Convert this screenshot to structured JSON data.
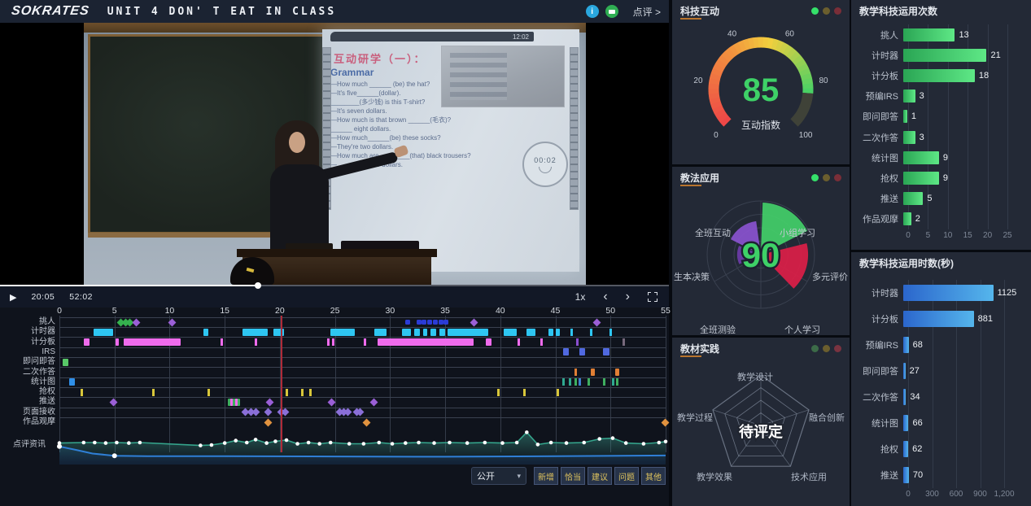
{
  "top_bar": {
    "logo": "SOKRATES",
    "title": "UNIT 4 DON' T EAT IN CLASS",
    "review_link": "点评 >",
    "info_icon_color": "#2aa7df",
    "chat_icon_color": "#2fae53"
  },
  "video": {
    "slide": {
      "clock": "12:02",
      "title": "互动研学（一）：",
      "heading": "Grammar",
      "lines": [
        "—How much ______ (be) the hat?",
        "—It's five______(dollar).",
        "________(多少钱) is this T-shirt?",
        "—It's seven dollars.",
        "—How much is that brown ______(毛衣)?",
        "______ eight dollars.",
        "—How much______(be) these socks?",
        "—They're two dollars.",
        "—How much are ________(that) black trousers?",
        "—________ nine dollars."
      ],
      "timer": "00:02"
    },
    "controls": {
      "play_icon": "▶",
      "current_time": "20:05",
      "duration": "52:02",
      "speed": "1x",
      "prev": "‹",
      "next": "›",
      "progress_percent": 38.6
    }
  },
  "timeline": {
    "x_ticks": [
      0,
      5,
      10,
      15,
      20,
      25,
      30,
      35,
      40,
      45,
      50,
      55
    ],
    "playhead_minute": 20.1,
    "playhead_color": "#b02a38",
    "rows": [
      {
        "label": "挑人",
        "items": [
          {
            "s": "dia",
            "a": 5.6,
            "c": "#35b24e"
          },
          {
            "s": "dia",
            "a": 6.0,
            "c": "#35b24e"
          },
          {
            "s": "dia",
            "a": 6.4,
            "c": "#35b24e"
          },
          {
            "s": "dia",
            "a": 7.0,
            "c": "#9a5fd6"
          },
          {
            "s": "dia",
            "a": 10.2,
            "c": "#9a5fd6"
          },
          {
            "s": "dot",
            "a": 31.6,
            "c": "#2b3bd6"
          },
          {
            "s": "dot",
            "a": 32.6,
            "c": "#2b3bd6"
          },
          {
            "s": "dot",
            "a": 33.1,
            "c": "#2b3bd6"
          },
          {
            "s": "dot",
            "a": 33.6,
            "c": "#2b3bd6"
          },
          {
            "s": "dot",
            "a": 34.1,
            "c": "#2b3bd6"
          },
          {
            "s": "dot",
            "a": 34.6,
            "c": "#2b3bd6"
          },
          {
            "s": "dot",
            "a": 35.1,
            "c": "#2b3bd6"
          },
          {
            "s": "dia",
            "a": 37.6,
            "c": "#9a5fd6"
          },
          {
            "s": "dia",
            "a": 48.8,
            "c": "#9a5fd6"
          }
        ]
      },
      {
        "label": "计时器",
        "items": [
          {
            "s": "bar",
            "a": 3.1,
            "b": 4.9,
            "c": "#2ec6f2"
          },
          {
            "s": "bar",
            "a": 13.1,
            "b": 13.5,
            "c": "#2ec6f2"
          },
          {
            "s": "bar",
            "a": 16.6,
            "b": 18.9,
            "c": "#2ec6f2"
          },
          {
            "s": "bar",
            "a": 19.4,
            "b": 20.4,
            "c": "#2ec6f2"
          },
          {
            "s": "bar",
            "a": 24.6,
            "b": 26.8,
            "c": "#2ec6f2"
          },
          {
            "s": "bar",
            "a": 28.6,
            "b": 29.7,
            "c": "#2ec6f2"
          },
          {
            "s": "bar",
            "a": 31.1,
            "b": 31.9,
            "c": "#2ec6f2"
          },
          {
            "s": "bar",
            "a": 32.2,
            "b": 32.7,
            "c": "#2ec6f2"
          },
          {
            "s": "bar",
            "a": 33.0,
            "b": 33.4,
            "c": "#2ec6f2"
          },
          {
            "s": "bar",
            "a": 33.7,
            "b": 34.2,
            "c": "#2ec6f2"
          },
          {
            "s": "bar",
            "a": 34.5,
            "b": 35.0,
            "c": "#2ec6f2"
          },
          {
            "s": "bar",
            "a": 35.2,
            "b": 38.9,
            "c": "#2ec6f2"
          },
          {
            "s": "bar",
            "a": 40.3,
            "b": 41.5,
            "c": "#2ec6f2"
          },
          {
            "s": "bar",
            "a": 42.4,
            "b": 43.2,
            "c": "#2ec6f2"
          },
          {
            "s": "bar",
            "a": 44.4,
            "b": 44.8,
            "c": "#2ec6f2"
          },
          {
            "s": "bar",
            "a": 45.0,
            "b": 45.4,
            "c": "#2ec6f2"
          },
          {
            "s": "tick",
            "a": 46.4,
            "c": "#2ec6f2"
          },
          {
            "s": "tick",
            "a": 48.1,
            "c": "#2ec6f2"
          },
          {
            "s": "tick",
            "a": 49.9,
            "c": "#2ec6f2"
          }
        ]
      },
      {
        "label": "计分板",
        "items": [
          {
            "s": "bar",
            "a": 2.2,
            "b": 2.7,
            "c": "#ef6bec"
          },
          {
            "s": "bar",
            "a": 5.1,
            "b": 5.4,
            "c": "#ef6bec"
          },
          {
            "s": "bar",
            "a": 5.8,
            "b": 11.0,
            "c": "#ef6bec"
          },
          {
            "s": "tick",
            "a": 14.6,
            "c": "#ef6bec"
          },
          {
            "s": "tick",
            "a": 17.7,
            "c": "#ef6bec"
          },
          {
            "s": "tick",
            "a": 24.3,
            "c": "#ef6bec"
          },
          {
            "s": "tick",
            "a": 24.7,
            "c": "#ef6bec"
          },
          {
            "s": "tick",
            "a": 27.6,
            "c": "#ef6bec"
          },
          {
            "s": "bar",
            "a": 28.9,
            "b": 37.6,
            "c": "#ef6bec"
          },
          {
            "s": "bar",
            "a": 38.7,
            "b": 39.2,
            "c": "#ef6bec"
          },
          {
            "s": "tick",
            "a": 41.6,
            "c": "#ef6bec"
          },
          {
            "s": "tick",
            "a": 43.6,
            "c": "#ef6bec"
          },
          {
            "s": "tick",
            "a": 46.9,
            "c": "#8a4fd0"
          },
          {
            "s": "tick",
            "a": 51.1,
            "c": "#77697c"
          }
        ]
      },
      {
        "label": "IRS",
        "items": [
          {
            "s": "bar",
            "a": 45.7,
            "b": 46.2,
            "c": "#5069e0"
          },
          {
            "s": "bar",
            "a": 47.2,
            "b": 47.7,
            "c": "#5069e0"
          },
          {
            "s": "bar",
            "a": 49.3,
            "b": 49.9,
            "c": "#5069e0"
          }
        ]
      },
      {
        "label": "即问即答",
        "items": [
          {
            "s": "bar",
            "a": 0.3,
            "b": 0.8,
            "c": "#58c868"
          }
        ]
      },
      {
        "label": "二次作答",
        "items": [
          {
            "s": "tick",
            "a": 46.7,
            "c": "#e07f35"
          },
          {
            "s": "bar",
            "a": 48.2,
            "b": 48.6,
            "c": "#e07f35"
          },
          {
            "s": "bar",
            "a": 50.4,
            "b": 50.8,
            "c": "#e07f35"
          }
        ]
      },
      {
        "label": "统计图",
        "items": [
          {
            "s": "bar",
            "a": 0.9,
            "b": 1.4,
            "c": "#2f8fe8"
          },
          {
            "s": "tick",
            "a": 45.6,
            "c": "#2fa890"
          },
          {
            "s": "tick",
            "a": 46.2,
            "c": "#2fa890"
          },
          {
            "s": "tick",
            "a": 46.7,
            "c": "#3fae5f"
          },
          {
            "s": "tick",
            "a": 47.1,
            "c": "#3f7fd0"
          },
          {
            "s": "tick",
            "a": 47.9,
            "c": "#3fae5f"
          },
          {
            "s": "tick",
            "a": 49.3,
            "c": "#3fae5f"
          },
          {
            "s": "tick",
            "a": 50.1,
            "c": "#2fa890"
          },
          {
            "s": "tick",
            "a": 50.5,
            "c": "#3fae5f"
          }
        ]
      },
      {
        "label": "抢权",
        "items": [
          {
            "s": "tick",
            "a": 1.9,
            "c": "#d8c63a"
          },
          {
            "s": "tick",
            "a": 8.4,
            "c": "#d8c63a"
          },
          {
            "s": "tick",
            "a": 13.4,
            "c": "#d8c63a"
          },
          {
            "s": "tick",
            "a": 20.5,
            "c": "#d8c63a"
          },
          {
            "s": "tick",
            "a": 21.9,
            "c": "#d8c63a"
          },
          {
            "s": "tick",
            "a": 22.7,
            "c": "#d8c63a"
          },
          {
            "s": "tick",
            "a": 39.7,
            "c": "#d8c63a"
          },
          {
            "s": "tick",
            "a": 42.1,
            "c": "#d8c63a"
          },
          {
            "s": "tick",
            "a": 45.1,
            "c": "#d8c63a"
          }
        ]
      },
      {
        "label": "推送",
        "items": [
          {
            "s": "dia",
            "a": 4.9,
            "c": "#9a5fd6"
          },
          {
            "s": "bar",
            "a": 15.3,
            "b": 16.4,
            "c": "#3fae5f"
          },
          {
            "s": "bar",
            "a": 15.5,
            "b": 15.75,
            "c": "#ef6bec"
          },
          {
            "s": "bar",
            "a": 15.95,
            "b": 16.2,
            "c": "#ef6bec"
          },
          {
            "s": "dia",
            "a": 19.1,
            "c": "#9a5fd6"
          },
          {
            "s": "dia",
            "a": 24.7,
            "c": "#9a5fd6"
          },
          {
            "s": "dia",
            "a": 28.5,
            "c": "#9a5fd6"
          }
        ]
      },
      {
        "label": "页面接收",
        "items": [
          {
            "s": "dia",
            "a": 16.9,
            "c": "#8a6fd8"
          },
          {
            "s": "dia",
            "a": 17.4,
            "c": "#8a6fd8"
          },
          {
            "s": "dia",
            "a": 17.8,
            "c": "#8a6fd8"
          },
          {
            "s": "dia",
            "a": 18.9,
            "c": "#8a6fd8"
          },
          {
            "s": "dia",
            "a": 20.1,
            "c": "#8a6fd8"
          },
          {
            "s": "dia",
            "a": 20.5,
            "c": "#8a6fd8"
          },
          {
            "s": "dia",
            "a": 25.4,
            "c": "#8a6fd8"
          },
          {
            "s": "dia",
            "a": 25.8,
            "c": "#8a6fd8"
          },
          {
            "s": "dia",
            "a": 26.2,
            "c": "#8a6fd8"
          },
          {
            "s": "dia",
            "a": 27.0,
            "c": "#8a6fd8"
          },
          {
            "s": "dia",
            "a": 27.3,
            "c": "#8a6fd8"
          }
        ]
      },
      {
        "label": "作品观摩",
        "items": [
          {
            "s": "dia",
            "a": 18.9,
            "c": "#e0923f"
          },
          {
            "s": "dia",
            "a": 27.9,
            "c": "#e0923f"
          },
          {
            "s": "dia",
            "a": 55.0,
            "c": "#e0923f"
          }
        ]
      }
    ]
  },
  "review_feed": {
    "label": "点评资讯",
    "green_color": "#35a58c",
    "blue_color": "#2f7fd6",
    "green": [
      [
        0,
        0.52
      ],
      [
        2.2,
        0.5
      ],
      [
        3.2,
        0.5
      ],
      [
        4.2,
        0.52
      ],
      [
        5.2,
        0.5
      ],
      [
        6.3,
        0.52
      ],
      [
        7.3,
        0.5
      ],
      [
        12.8,
        0.62
      ],
      [
        13.8,
        0.6
      ],
      [
        15,
        0.52
      ],
      [
        16,
        0.42
      ],
      [
        17,
        0.5
      ],
      [
        17.8,
        0.38
      ],
      [
        18.8,
        0.52
      ],
      [
        19.6,
        0.45
      ],
      [
        20.6,
        0.4
      ],
      [
        21.6,
        0.55
      ],
      [
        22.6,
        0.5
      ],
      [
        23.6,
        0.55
      ],
      [
        24.6,
        0.5
      ],
      [
        26.3,
        0.55
      ],
      [
        27.6,
        0.55
      ],
      [
        29,
        0.5
      ],
      [
        30.2,
        0.55
      ],
      [
        31.4,
        0.52
      ],
      [
        32.6,
        0.5
      ],
      [
        34,
        0.52
      ],
      [
        35.4,
        0.5
      ],
      [
        37,
        0.52
      ],
      [
        38.6,
        0.5
      ],
      [
        40.2,
        0.52
      ],
      [
        41.5,
        0.5
      ],
      [
        42.4,
        0.08
      ],
      [
        43.4,
        0.58
      ],
      [
        44.6,
        0.5
      ],
      [
        46,
        0.52
      ],
      [
        47.6,
        0.5
      ],
      [
        49,
        0.35
      ],
      [
        50.2,
        0.32
      ],
      [
        51.4,
        0.52
      ],
      [
        53,
        0.55
      ],
      [
        54.4,
        0.5
      ],
      [
        55,
        0.46
      ]
    ],
    "blue": [
      [
        0,
        0.66
      ],
      [
        1.5,
        0.8
      ],
      [
        3,
        0.95
      ],
      [
        5,
        1.04
      ],
      [
        8,
        1.06
      ],
      [
        15,
        1.06
      ],
      [
        25,
        1.07
      ],
      [
        35,
        1.08
      ],
      [
        45,
        1.06
      ],
      [
        55,
        1.03
      ]
    ],
    "blue_dot_indices": [
      0,
      3
    ]
  },
  "comment_bar": {
    "visibility_value": "公开",
    "chevron": "▾",
    "buttons": [
      "新增",
      "恰当",
      "建议",
      "问题",
      "其他"
    ]
  },
  "panels": {
    "tech_interaction": {
      "title": "科技互动",
      "dots": [
        "#35e06a",
        "#6b5e2e",
        "#7a2e38"
      ],
      "gauge": {
        "value": 85,
        "max": 100,
        "ticks": [
          0,
          20,
          40,
          60,
          80,
          100
        ],
        "label": "互动指数",
        "value_color": "#3ed167",
        "track_color": "#3f4238",
        "gradient": [
          [
            0,
            "#ee4747"
          ],
          [
            0.42,
            "#f2953e"
          ],
          [
            0.62,
            "#f2cf3e"
          ],
          [
            1,
            "#3ed167"
          ]
        ]
      }
    },
    "pedagogy": {
      "title": "教法应用",
      "dots": [
        "#35e06a",
        "#6b5e2e",
        "#7a2e38"
      ],
      "rose": {
        "center_value": 90,
        "center_color": "#3ed167",
        "rings": 4,
        "sectors": [
          {
            "label": "小组学习",
            "start": 2,
            "end": 63,
            "value": 0.97,
            "color": "#43cf69"
          },
          {
            "label": "多元评价",
            "start": 76,
            "end": 136,
            "value": 0.88,
            "color": "#dc1e48"
          },
          {
            "label": "个人学习",
            "start": 168,
            "end": 192,
            "value": 0.14,
            "color": "#1fb5a8"
          },
          {
            "label": "全班测验",
            "start": 205,
            "end": 265,
            "value": 0,
            "color": "#4a5264"
          },
          {
            "label": "生本决策",
            "start": 246,
            "end": 292,
            "value": 0.44,
            "color": "#6d3ba8"
          },
          {
            "label": "全班互动",
            "start": 297,
            "end": 352,
            "value": 0.63,
            "color": "#8a52cf"
          }
        ]
      }
    },
    "material": {
      "title": "教材实践",
      "dots": [
        "#3c6b48",
        "#6b5e2e",
        "#7a3340"
      ],
      "radar": {
        "status": "待评定",
        "axes": [
          "教学设计",
          "融合创新",
          "技术应用",
          "教学效果",
          "教学过程"
        ],
        "levels": 4
      }
    },
    "usage_counts": {
      "title": "教学科技运用次数",
      "categories": [
        "挑人",
        "计时器",
        "计分板",
        "预编IRS",
        "即问即答",
        "二次作答",
        "统计图",
        "抢权",
        "推送",
        "作品观摩"
      ],
      "values": [
        13,
        21,
        18,
        3,
        1,
        3,
        9,
        9,
        5,
        2
      ],
      "ticks": [
        0,
        5,
        10,
        15,
        20,
        25
      ],
      "max": 25,
      "bar_from": "#2aa554",
      "bar_to": "#5ee886"
    },
    "usage_seconds": {
      "title": "教学科技运用时数(秒)",
      "categories": [
        "计时器",
        "计分板",
        "预编IRS",
        "即问即答",
        "二次作答",
        "统计图",
        "抢权",
        "推送"
      ],
      "values": [
        1125,
        881,
        68,
        27,
        34,
        66,
        62,
        70
      ],
      "tick_labels": [
        "0",
        "300",
        "600",
        "900",
        "1,200"
      ],
      "tick_values": [
        0,
        300,
        600,
        900,
        1200
      ],
      "max": 1200,
      "bar_from": "#2b66cc",
      "bar_to": "#55b6ec"
    }
  }
}
